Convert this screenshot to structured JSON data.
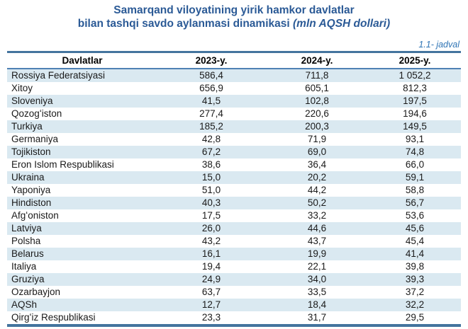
{
  "title": {
    "line1": "Samarqand viloyatining yirik hamkor davlatlar",
    "line2": "bilan tashqi savdo aylanmasi dinamikasi ",
    "line2_italic": "(mln AQSH dollari)"
  },
  "table_label": "1.1- jadval",
  "colors": {
    "title_blue": "#2b5a96",
    "label_blue": "#2e74b5",
    "border_blue": "#44749e",
    "rule_blue": "#4e81b4",
    "band_blue": "#dae9f1"
  },
  "table": {
    "headers": [
      "Davlatlar",
      "2023-y.",
      "2024-y.",
      "2025-y."
    ],
    "rows": [
      [
        "Rossiya Federatsiyasi",
        "586,4",
        "711,8",
        "1 052,2"
      ],
      [
        "Xitoy",
        "656,9",
        "605,1",
        "812,3"
      ],
      [
        "Sloveniya",
        "41,5",
        "102,8",
        "197,5"
      ],
      [
        "Qozogʻiston",
        "277,4",
        "220,6",
        "194,6"
      ],
      [
        "Turkiya",
        "185,2",
        "200,3",
        "149,5"
      ],
      [
        "Germaniya",
        "42,8",
        "71,9",
        "93,1"
      ],
      [
        "Tojikiston",
        "67,2",
        "69,0",
        "74,8"
      ],
      [
        "Eron Islom Respublikasi",
        "38,6",
        "36,4",
        "66,0"
      ],
      [
        "Ukraina",
        "15,0",
        "20,2",
        "59,1"
      ],
      [
        "Yaponiya",
        "51,0",
        "44,2",
        "58,8"
      ],
      [
        "Hindiston",
        "40,3",
        "50,2",
        "56,7"
      ],
      [
        "Afgʻoniston",
        "17,5",
        "33,2",
        "53,6"
      ],
      [
        "Latviya",
        "26,0",
        "44,6",
        "45,6"
      ],
      [
        "Polsha",
        "43,2",
        "43,7",
        "45,4"
      ],
      [
        "Belarus",
        "16,1",
        "19,9",
        "41,4"
      ],
      [
        "Italiya",
        "19,4",
        "22,1",
        "39,8"
      ],
      [
        "Gruziya",
        "24,9",
        "34,0",
        "39,3"
      ],
      [
        "Ozarbayjon",
        "63,7",
        "33,5",
        "37,2"
      ],
      [
        "AQSh",
        "12,7",
        "18,4",
        "32,2"
      ],
      [
        "Qirgʻiz Respublikasi",
        "23,3",
        "31,7",
        "29,5"
      ]
    ]
  },
  "chart_data": {
    "type": "table",
    "title": "Samarqand viloyatining yirik hamkor davlatlar bilan tashqi savdo aylanmasi dinamikasi (mln AQSH dollari)",
    "caption": "1.1- jadval",
    "categories": [
      "Rossiya Federatsiyasi",
      "Xitoy",
      "Sloveniya",
      "Qozogʻiston",
      "Turkiya",
      "Germaniya",
      "Tojikiston",
      "Eron Islom Respublikasi",
      "Ukraina",
      "Yaponiya",
      "Hindiston",
      "Afgʻoniston",
      "Latviya",
      "Polsha",
      "Belarus",
      "Italiya",
      "Gruziya",
      "Ozarbayjon",
      "AQSh",
      "Qirgʻiz Respublikasi"
    ],
    "series": [
      {
        "name": "2023-y.",
        "values": [
          586.4,
          656.9,
          41.5,
          277.4,
          185.2,
          42.8,
          67.2,
          38.6,
          15.0,
          51.0,
          40.3,
          17.5,
          26.0,
          43.2,
          16.1,
          19.4,
          24.9,
          63.7,
          12.7,
          23.3
        ]
      },
      {
        "name": "2024-y.",
        "values": [
          711.8,
          605.1,
          102.8,
          220.6,
          200.3,
          71.9,
          69.0,
          36.4,
          20.2,
          44.2,
          50.2,
          33.2,
          44.6,
          43.7,
          19.9,
          22.1,
          34.0,
          33.5,
          18.4,
          31.7
        ]
      },
      {
        "name": "2025-y.",
        "values": [
          1052.2,
          812.3,
          197.5,
          194.6,
          149.5,
          93.1,
          74.8,
          66.0,
          59.1,
          58.8,
          56.7,
          53.6,
          45.6,
          45.4,
          41.4,
          39.8,
          39.3,
          37.2,
          32.2,
          29.5
        ]
      }
    ],
    "units": "mln AQSH dollari"
  }
}
